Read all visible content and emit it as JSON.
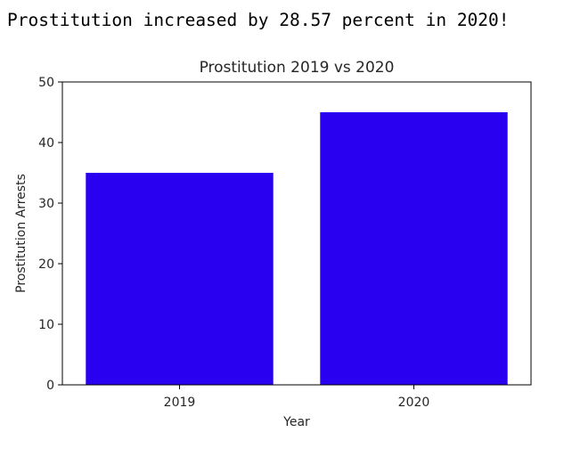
{
  "output": {
    "text": "Prostitution increased by 28.57 percent in 2020!"
  },
  "chart_data": {
    "type": "bar",
    "title": "Prostitution 2019 vs 2020",
    "xlabel": "Year",
    "ylabel": "Prostitution Arrests",
    "categories": [
      "2019",
      "2020"
    ],
    "values": [
      35,
      45
    ],
    "ylim": [
      0,
      50
    ],
    "yticks": [
      0,
      10,
      20,
      30,
      40,
      50
    ],
    "bar_color": "#2a00f0",
    "grid": false,
    "legend": "none"
  }
}
